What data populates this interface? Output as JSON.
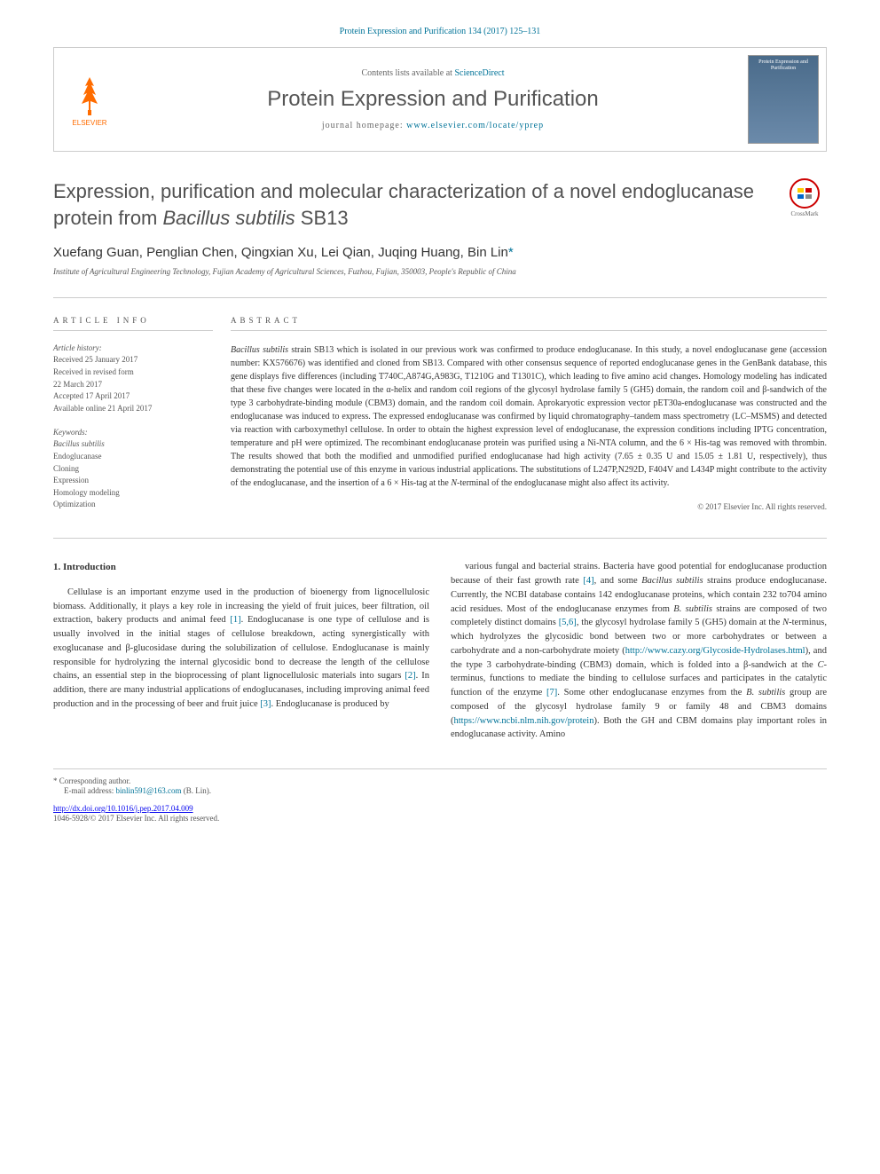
{
  "citation": "Protein Expression and Purification 134 (2017) 125–131",
  "header": {
    "contents_prefix": "Contents lists available at ",
    "contents_link": "ScienceDirect",
    "journal_name": "Protein Expression and Purification",
    "homepage_prefix": "journal homepage: ",
    "homepage_url": "www.elsevier.com/locate/yprep",
    "elsevier_label": "ELSEVIER",
    "cover_text": "Protein Expression and Purification"
  },
  "crossmark_label": "CrossMark",
  "title_plain": "Expression, purification and molecular characterization of a novel endoglucanase protein from ",
  "title_italic": "Bacillus subtilis",
  "title_suffix": " SB13",
  "authors": "Xuefang Guan, Penglian Chen, Qingxian Xu, Lei Qian, Juqing Huang, Bin Lin",
  "corr_marker": "*",
  "affiliation": "Institute of Agricultural Engineering Technology, Fujian Academy of Agricultural Sciences, Fuzhou, Fujian, 350003, People's Republic of China",
  "info": {
    "heading": "ARTICLE INFO",
    "history_label": "Article history:",
    "history": [
      "Received 25 January 2017",
      "Received in revised form",
      "22 March 2017",
      "Accepted 17 April 2017",
      "Available online 21 April 2017"
    ],
    "keywords_label": "Keywords:",
    "keywords": [
      {
        "text": "Bacillus subtilis",
        "italic": true
      },
      {
        "text": "Endoglucanase",
        "italic": false
      },
      {
        "text": "Cloning",
        "italic": false
      },
      {
        "text": "Expression",
        "italic": false
      },
      {
        "text": "Homology modeling",
        "italic": false
      },
      {
        "text": "Optimization",
        "italic": false
      }
    ]
  },
  "abstract": {
    "heading": "ABSTRACT",
    "copyright": "© 2017 Elsevier Inc. All rights reserved."
  },
  "intro": {
    "heading": "1. Introduction"
  },
  "footer": {
    "corr_label": "* Corresponding author.",
    "email_prefix": "E-mail address: ",
    "email": "binlin591@163.com",
    "email_suffix": " (B. Lin).",
    "doi": "http://dx.doi.org/10.1016/j.pep.2017.04.009",
    "issn": "1046-5928/© 2017 Elsevier Inc. All rights reserved."
  },
  "colors": {
    "link": "#007398",
    "text": "#333333",
    "muted": "#555555",
    "border": "#cccccc",
    "elsevier_orange": "#ff6c00",
    "crossmark_red": "#cc0000"
  }
}
